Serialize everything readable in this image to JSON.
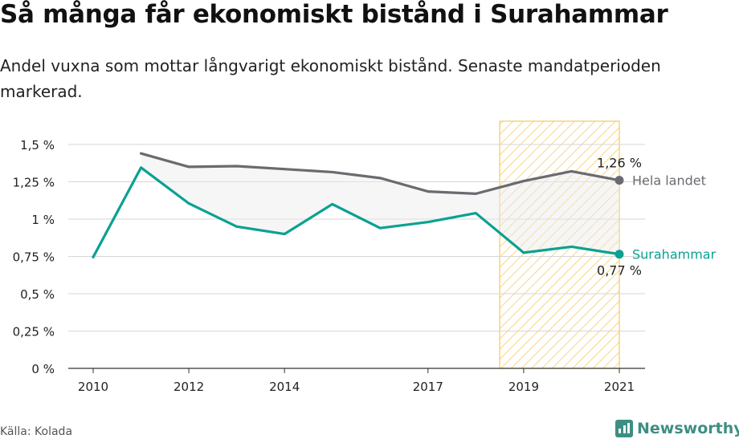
{
  "title": "Så många får ekonomiskt bistånd i Surahammar",
  "subtitle": "Andel vuxna som mottar långvarigt ekonomiskt bistånd. Senaste mandatperioden markerad.",
  "source": "Källa: Kolada",
  "brand": "Newsworthy",
  "colors": {
    "national": "#6b6a70",
    "local": "#0aa192",
    "highlight": "#f5c85e"
  },
  "chart_data": {
    "type": "line",
    "x_ticks": [
      2010,
      2012,
      2014,
      2017,
      2019,
      2021
    ],
    "y_ticks": [
      {
        "value": 0,
        "label": "0 %"
      },
      {
        "value": 0.25,
        "label": "0,25 %"
      },
      {
        "value": 0.5,
        "label": "0,5 %"
      },
      {
        "value": 0.75,
        "label": "0,75 %"
      },
      {
        "value": 1,
        "label": "1 %"
      },
      {
        "value": 1.25,
        "label": "1,25 %"
      },
      {
        "value": 1.5,
        "label": "1,5 %"
      }
    ],
    "ylim": [
      0,
      1.5
    ],
    "xlim": [
      2010,
      2021
    ],
    "highlight_range": [
      2018.5,
      2021
    ],
    "series": [
      {
        "name": "Hela landet",
        "value_label": "1,26 %",
        "color": "#6b6a70",
        "x": [
          2011,
          2012,
          2013,
          2014,
          2015,
          2016,
          2017,
          2018,
          2019,
          2020,
          2021
        ],
        "y": [
          1.44,
          1.35,
          1.355,
          1.335,
          1.315,
          1.275,
          1.185,
          1.17,
          1.255,
          1.32,
          1.26
        ]
      },
      {
        "name": "Surahammar",
        "value_label": "0,77 %",
        "color": "#0aa192",
        "x": [
          2010,
          2011,
          2012,
          2013,
          2014,
          2015,
          2016,
          2017,
          2018,
          2019,
          2020,
          2021
        ],
        "y": [
          0.745,
          1.345,
          1.105,
          0.95,
          0.9,
          1.1,
          0.94,
          0.98,
          1.04,
          0.775,
          0.815,
          0.765
        ]
      }
    ]
  }
}
